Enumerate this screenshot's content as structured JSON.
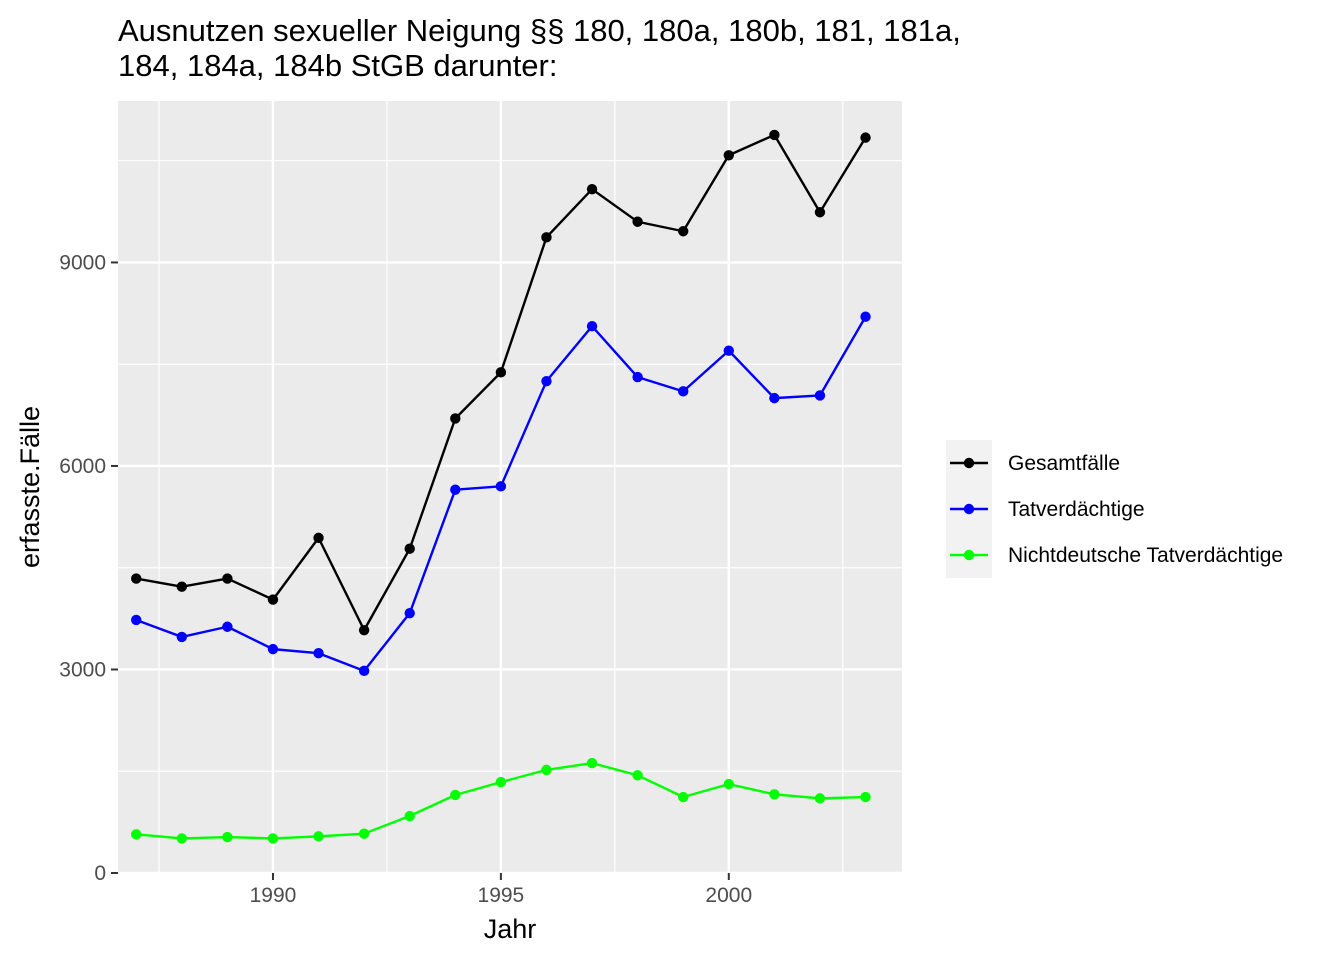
{
  "chart_data": {
    "type": "line",
    "title_lines": [
      "Ausnutzen sexueller Neigung §§ 180, 180a, 180b, 181, 181a,",
      "184, 184a, 184b StGB darunter:"
    ],
    "xlabel": "Jahr",
    "ylabel": "erfasste.Fälle",
    "x": [
      1987,
      1988,
      1989,
      1990,
      1991,
      1992,
      1993,
      1994,
      1995,
      1996,
      1997,
      1998,
      1999,
      2000,
      2001,
      2002,
      2003
    ],
    "xlim": [
      1986.6,
      2003.8
    ],
    "ylim": [
      0,
      11380
    ],
    "x_ticks": [
      1990,
      1995,
      2000
    ],
    "x_tick_labels": [
      "1990",
      "1995",
      "2000"
    ],
    "y_ticks": [
      0,
      3000,
      6000,
      9000
    ],
    "y_tick_labels": [
      "0",
      "3000",
      "6000",
      "9000"
    ],
    "grid": true,
    "legend_position": "right",
    "series": [
      {
        "name": "Gesamtfälle",
        "color": "#000000",
        "values": [
          4340,
          4220,
          4340,
          4030,
          4940,
          3580,
          4780,
          6700,
          7380,
          9370,
          10080,
          9600,
          9460,
          10580,
          10880,
          9740,
          10840
        ]
      },
      {
        "name": "Tatverdächtige",
        "color": "#0000ff",
        "values": [
          3730,
          3480,
          3630,
          3300,
          3240,
          2980,
          3830,
          5650,
          5700,
          7250,
          8060,
          7310,
          7100,
          7700,
          7000,
          7040,
          8200
        ]
      },
      {
        "name": "Nichtdeutsche Tatverdächtige",
        "color": "#00ff00",
        "values": [
          570,
          510,
          530,
          510,
          540,
          580,
          840,
          1150,
          1340,
          1520,
          1620,
          1440,
          1120,
          1310,
          1160,
          1100,
          1120
        ]
      }
    ]
  }
}
